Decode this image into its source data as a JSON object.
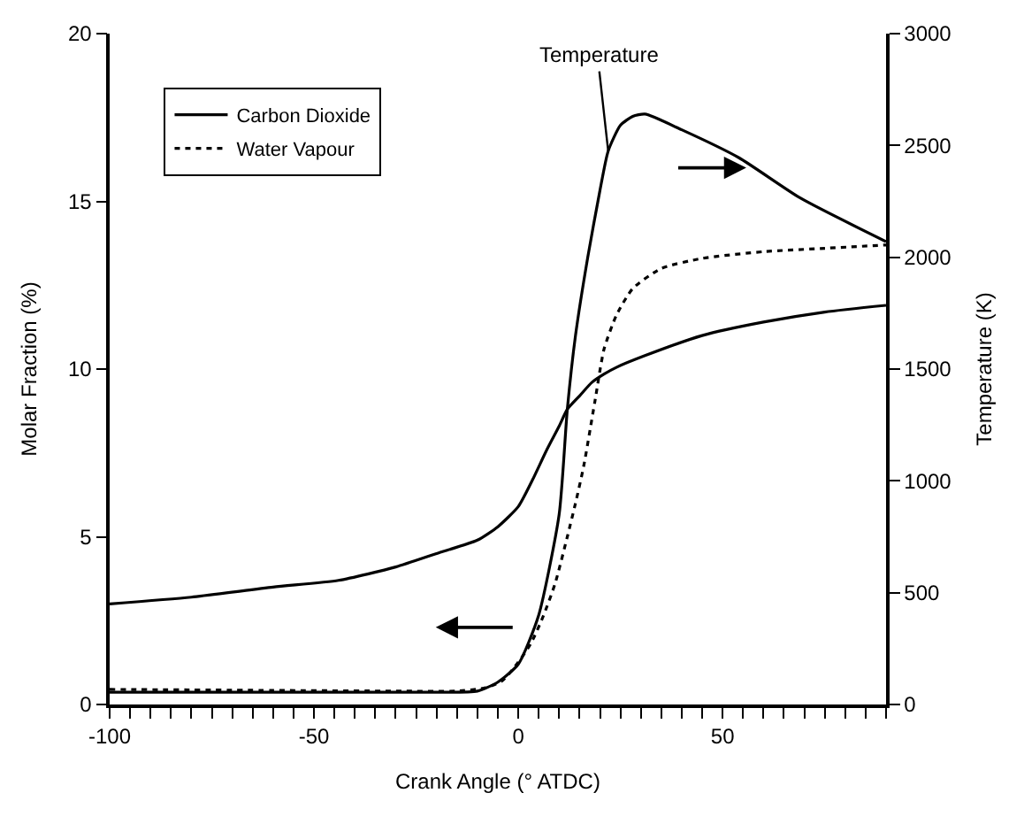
{
  "chart_data": {
    "type": "line",
    "xlabel": "Crank Angle (° ATDC)",
    "ylabel": "Molar Fraction (%)",
    "y2label": "Temperature (K)",
    "xlim": [
      -100,
      90
    ],
    "ylim": [
      0,
      20
    ],
    "y2lim": [
      0,
      3000
    ],
    "xticks": [
      -100,
      {
        "value": -95,
        "label": null
      },
      {
        "value": -90,
        "label": null
      },
      {
        "value": -85,
        "label": null
      },
      {
        "value": -80,
        "label": null
      },
      {
        "value": -75,
        "label": null
      },
      {
        "value": -70,
        "label": null
      },
      {
        "value": -65,
        "label": null
      },
      {
        "value": -60,
        "label": null
      },
      {
        "value": -55,
        "label": null
      },
      -50,
      {
        "value": -45,
        "label": null
      },
      {
        "value": -40,
        "label": null
      },
      {
        "value": -35,
        "label": null
      },
      {
        "value": -30,
        "label": null
      },
      {
        "value": -25,
        "label": null
      },
      {
        "value": -20,
        "label": null
      },
      {
        "value": -15,
        "label": null
      },
      {
        "value": -10,
        "label": null
      },
      {
        "value": -5,
        "label": null
      },
      0,
      {
        "value": 5,
        "label": null
      },
      {
        "value": 10,
        "label": null
      },
      {
        "value": 15,
        "label": null
      },
      {
        "value": 20,
        "label": null
      },
      {
        "value": 25,
        "label": null
      },
      {
        "value": 30,
        "label": null
      },
      {
        "value": 35,
        "label": null
      },
      {
        "value": 40,
        "label": null
      },
      {
        "value": 45,
        "label": null
      },
      50,
      {
        "value": 55,
        "label": null
      },
      {
        "value": 60,
        "label": null
      },
      {
        "value": 65,
        "label": null
      },
      {
        "value": 70,
        "label": null
      },
      {
        "value": 75,
        "label": null
      },
      {
        "value": 80,
        "label": null
      },
      {
        "value": 85,
        "label": null
      },
      {
        "value": 90,
        "label": null
      }
    ],
    "yticks": [
      0,
      5,
      10,
      15,
      20
    ],
    "y2ticks": [
      0,
      500,
      1000,
      1500,
      2000,
      2500,
      3000
    ],
    "legend": "top left",
    "marker": "none",
    "series": [
      {
        "name": "Carbon Dioxide",
        "color": "#000000",
        "line_style": "solid",
        "x": [
          -100,
          -80,
          -60,
          -44,
          -30,
          -20,
          -10,
          -5,
          0,
          3.5,
          7,
          10,
          12,
          15,
          18,
          21,
          24,
          31,
          45,
          60,
          75,
          90
        ],
        "values": [
          3.0,
          3.2,
          3.5,
          3.7,
          4.1,
          4.5,
          4.9,
          5.3,
          5.9,
          6.7,
          7.6,
          8.3,
          8.8,
          9.2,
          9.6,
          9.85,
          10.05,
          10.4,
          11.0,
          11.4,
          11.7,
          11.9
        ]
      },
      {
        "name": "Water Vapour",
        "color": "#000000",
        "line_style": "dotted",
        "x": [
          -100,
          -60,
          -30,
          -15,
          -8,
          -4,
          -1,
          3,
          6,
          9,
          12,
          14,
          16,
          18.7,
          21,
          24,
          28,
          35,
          45,
          60,
          75,
          90
        ],
        "values": [
          0.45,
          0.42,
          0.4,
          0.4,
          0.5,
          0.7,
          1.1,
          1.8,
          2.6,
          3.6,
          5.0,
          6.0,
          7.1,
          9.0,
          10.6,
          11.6,
          12.4,
          13.0,
          13.3,
          13.5,
          13.6,
          13.7
        ]
      },
      {
        "name": "Temperature",
        "axis": "y2",
        "color": "#000000",
        "line_style": "solid",
        "x": [
          -100,
          -60,
          -20,
          -10,
          -5,
          0,
          5,
          10,
          12,
          14,
          17,
          20,
          22,
          25,
          28,
          31,
          40,
          54,
          69,
          90
        ],
        "values": [
          55,
          55,
          55,
          60,
          100,
          180,
          400,
          850,
          1320,
          1650,
          2000,
          2300,
          2475,
          2590,
          2630,
          2640,
          2570,
          2445,
          2265,
          2070
        ]
      }
    ]
  }
}
